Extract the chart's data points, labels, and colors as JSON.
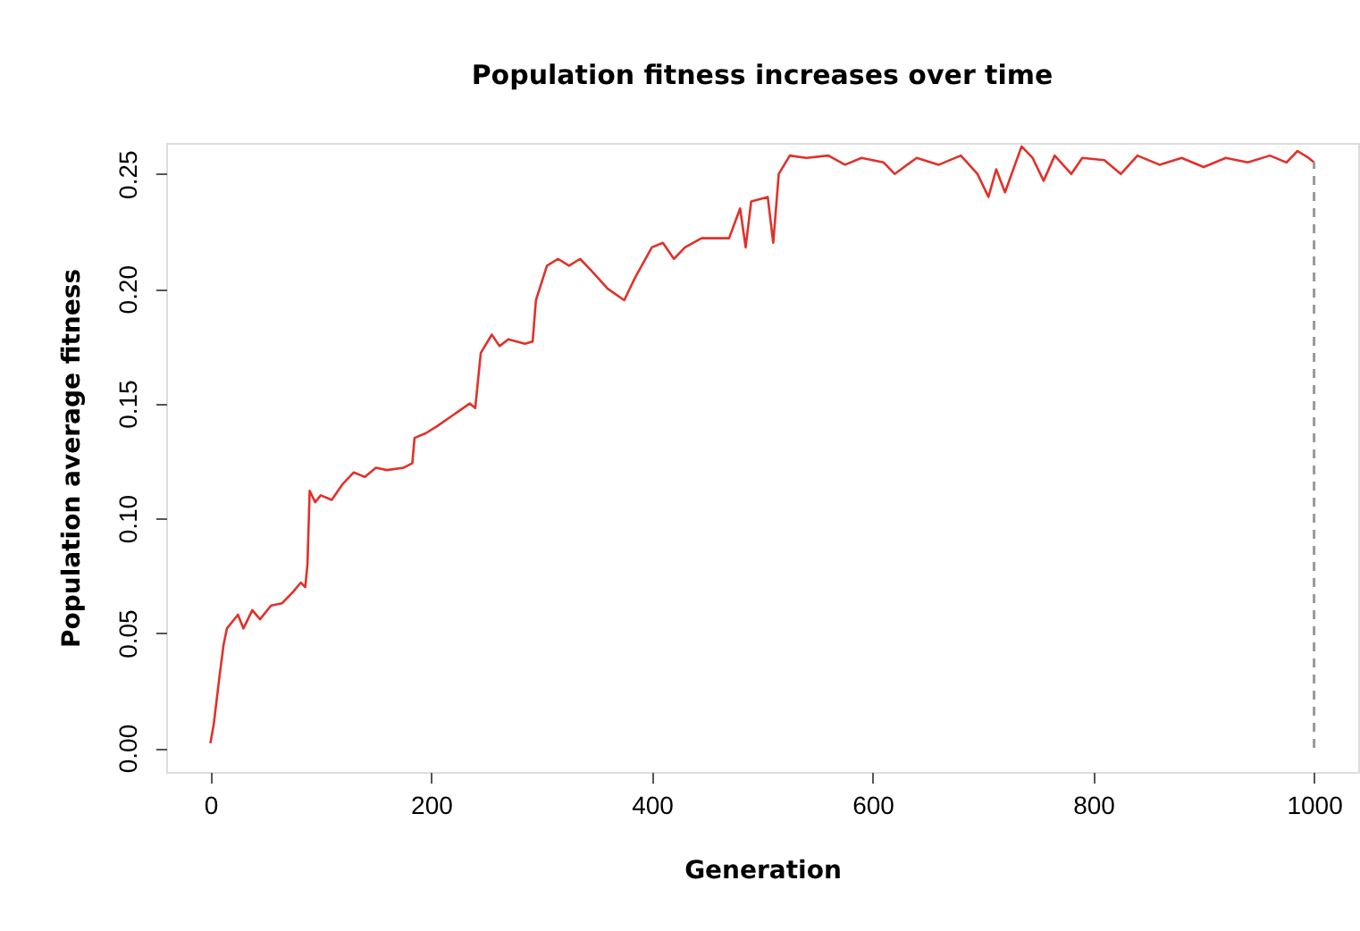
{
  "chart_data": {
    "type": "line",
    "title": "Population fitness increases over time",
    "xlabel": "Generation",
    "ylabel": "Population average fitness",
    "xlim": [
      -40,
      1040
    ],
    "xticks": [
      0,
      200,
      400,
      600,
      800,
      1000
    ],
    "ylim": [
      -0.0105,
      0.2635
    ],
    "yticks": [
      {
        "value": 0,
        "label": "0.00"
      },
      0.05,
      {
        "value": 0.1,
        "label": "0.10"
      },
      0.15,
      {
        "value": 0.2,
        "label": "0.20"
      },
      0.25
    ],
    "grid": false,
    "line_style": "solid",
    "marker": "none",
    "x": [
      0,
      3,
      8,
      12,
      15,
      20,
      25,
      30,
      38,
      45,
      55,
      65,
      75,
      82,
      86,
      88,
      90,
      95,
      100,
      110,
      120,
      130,
      140,
      150,
      160,
      175,
      183,
      185,
      195,
      205,
      220,
      235,
      240,
      245,
      255,
      262,
      270,
      285,
      292,
      295,
      305,
      315,
      325,
      335,
      345,
      360,
      375,
      385,
      400,
      410,
      420,
      430,
      445,
      460,
      470,
      480,
      485,
      490,
      505,
      510,
      515,
      525,
      540,
      560,
      575,
      590,
      610,
      620,
      640,
      660,
      680,
      695,
      705,
      712,
      720,
      735,
      745,
      755,
      765,
      780,
      790,
      810,
      825,
      840,
      860,
      880,
      900,
      920,
      940,
      960,
      975,
      985,
      995,
      1000
    ],
    "series": [
      {
        "color": "#e0312a",
        "values": [
          0.002,
          0.01,
          0.03,
          0.045,
          0.052,
          0.055,
          0.058,
          0.052,
          0.06,
          0.056,
          0.062,
          0.063,
          0.068,
          0.072,
          0.07,
          0.08,
          0.112,
          0.107,
          0.11,
          0.108,
          0.115,
          0.12,
          0.118,
          0.122,
          0.121,
          0.122,
          0.124,
          0.135,
          0.137,
          0.14,
          0.145,
          0.15,
          0.148,
          0.172,
          0.18,
          0.175,
          0.178,
          0.176,
          0.177,
          0.195,
          0.21,
          0.213,
          0.21,
          0.213,
          0.208,
          0.2,
          0.195,
          0.205,
          0.218,
          0.22,
          0.213,
          0.218,
          0.222,
          0.222,
          0.222,
          0.235,
          0.218,
          0.238,
          0.24,
          0.22,
          0.25,
          0.258,
          0.257,
          0.258,
          0.254,
          0.257,
          0.255,
          0.25,
          0.257,
          0.254,
          0.258,
          0.25,
          0.24,
          0.252,
          0.242,
          0.262,
          0.257,
          0.247,
          0.258,
          0.25,
          0.257,
          0.256,
          0.25,
          0.258,
          0.254,
          0.257,
          0.253,
          0.257,
          0.255,
          0.258,
          0.255,
          0.26,
          0.257,
          0.255
        ]
      }
    ],
    "ref_lines": [
      {
        "axis": "x",
        "value": 1000,
        "color": "#999999",
        "line_style": "dashed"
      }
    ]
  }
}
